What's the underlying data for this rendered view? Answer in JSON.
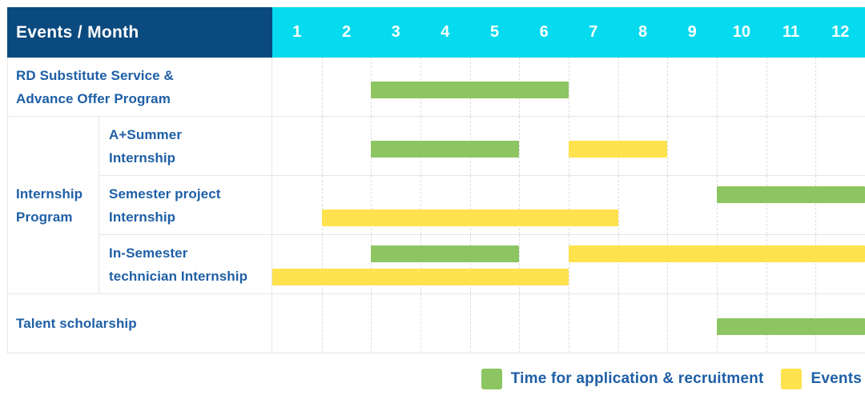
{
  "title": "Events / Month",
  "months": [
    "1",
    "2",
    "3",
    "4",
    "5",
    "6",
    "7",
    "8",
    "9",
    "10",
    "11",
    "12"
  ],
  "colors": {
    "header_bg": "#0B4A7E",
    "months_bg": "#06DAEE",
    "application": "#8CC561",
    "events": "#FFE24D",
    "label_text": "#1E5FA6",
    "header_text": "#FFFFFF",
    "grid_border": "#E6E6E6"
  },
  "legend": [
    {
      "key": "application",
      "label": "Time for application & recruitment",
      "color": "#8CC561"
    },
    {
      "key": "events",
      "label": "Events",
      "color": "#FFE24D"
    }
  ],
  "group_cell": {
    "label": "Internship Program",
    "label_lines": "Internship\nProgram",
    "spans_rows": [
      2,
      3,
      4
    ]
  },
  "chart_data": {
    "type": "bar",
    "subtype": "gantt",
    "title": "Events / Month",
    "x_unit": "month",
    "x_ticks": [
      1,
      2,
      3,
      4,
      5,
      6,
      7,
      8,
      9,
      10,
      11,
      12
    ],
    "x_range": [
      1,
      13
    ],
    "end_month_convention": "exclusive",
    "legend_position": "bottom-right",
    "series": [
      {
        "key": "application",
        "name": "Time for application & recruitment",
        "color": "#8CC561"
      },
      {
        "key": "events",
        "name": "Events",
        "color": "#FFE24D"
      }
    ],
    "rows": [
      {
        "label": "RD Substitute Service & Advance Offer Program",
        "label_lines": "RD Substitute Service &\nAdvance Offer Program",
        "group": null,
        "bars": [
          {
            "series": "application",
            "start_month": 3,
            "end_month": 7,
            "lane": "single"
          }
        ]
      },
      {
        "label": "A+Summer Internship",
        "label_lines": "A+Summer\nInternship",
        "group": "Internship Program",
        "bars": [
          {
            "series": "application",
            "start_month": 3,
            "end_month": 6,
            "lane": "single"
          },
          {
            "series": "events",
            "start_month": 7,
            "end_month": 9,
            "lane": "single"
          }
        ]
      },
      {
        "label": "Semester project Internship",
        "label_lines": "Semester project\nInternship",
        "group": "Internship Program",
        "bars": [
          {
            "series": "application",
            "start_month": 10,
            "end_month": 13,
            "lane": "upper"
          },
          {
            "series": "events",
            "start_month": 2,
            "end_month": 8,
            "lane": "lower"
          }
        ]
      },
      {
        "label": "In-Semester technician Internship",
        "label_lines": "In-Semester\ntechnician Internship",
        "group": "Internship Program",
        "bars": [
          {
            "series": "application",
            "start_month": 3,
            "end_month": 6,
            "lane": "upper"
          },
          {
            "series": "events",
            "start_month": 7,
            "end_month": 13,
            "lane": "upper"
          },
          {
            "series": "events",
            "start_month": 1,
            "end_month": 7,
            "lane": "lower"
          }
        ]
      },
      {
        "label": "Talent scholarship",
        "label_lines": "Talent scholarship",
        "group": null,
        "bars": [
          {
            "series": "application",
            "start_month": 10,
            "end_month": 13,
            "lane": "single"
          }
        ]
      }
    ]
  }
}
